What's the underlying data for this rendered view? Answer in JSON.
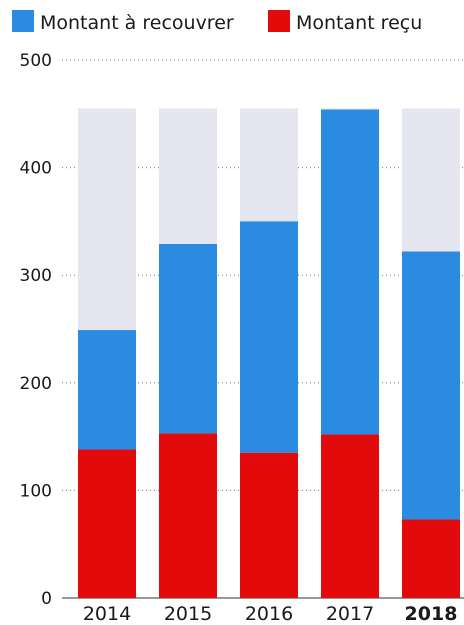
{
  "chart_data": {
    "type": "bar",
    "stacked": true,
    "categories": [
      "2014",
      "2015",
      "2016",
      "2017",
      "2018"
    ],
    "highlighted_category": "2018",
    "series": [
      {
        "name": "Montant reçu",
        "values": [
          138,
          153,
          135,
          152,
          73
        ],
        "color": "#e20a0a"
      },
      {
        "name": "Montant à recouvrer",
        "values": [
          111,
          176,
          215,
          302,
          249
        ],
        "color": "#2a8be0"
      }
    ],
    "totals": [
      249,
      329,
      350,
      454,
      322
    ],
    "legend_order": [
      "Montant à recouvrer",
      "Montant reçu"
    ],
    "legend_position": "top-left",
    "ylim": [
      0,
      500
    ],
    "yticks": [
      "0",
      "100",
      "200",
      "300",
      "400",
      "500"
    ],
    "grid": true,
    "background_bar_color": "#e6e6f0",
    "background_bar_value": 455
  }
}
